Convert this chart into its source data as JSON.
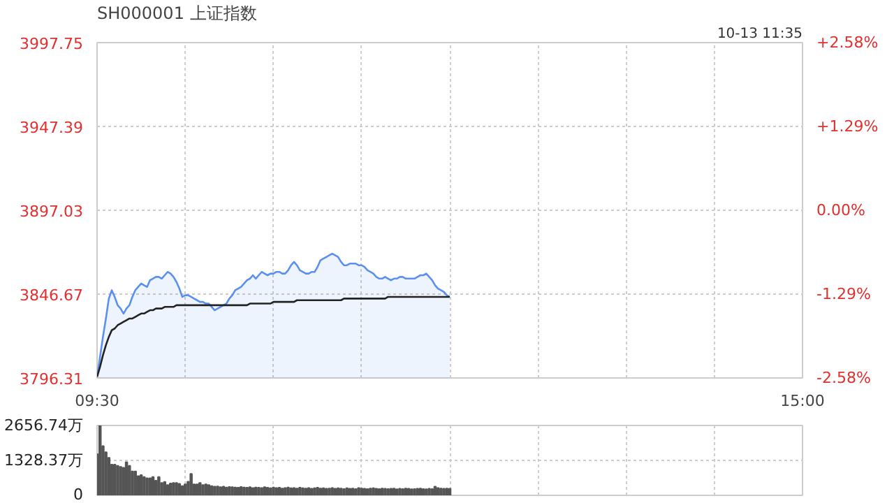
{
  "chart_data": [
    {
      "type": "line",
      "title": "SH000001 上证指数",
      "annotations": [
        "10-13 11:35"
      ],
      "grid": true,
      "line_style": "solid",
      "marker": "none",
      "categories": [
        "09:30",
        null,
        null,
        null,
        null,
        null,
        null,
        null,
        null,
        null,
        null,
        null,
        null,
        null,
        null,
        null,
        null,
        null,
        null,
        null,
        null,
        null,
        null,
        null,
        null,
        null,
        null,
        null,
        null,
        null,
        null,
        null,
        null,
        null,
        null,
        null,
        null,
        null,
        null,
        null,
        null,
        null,
        null,
        null,
        null,
        null,
        null,
        null,
        null,
        null,
        null,
        null,
        null,
        null,
        null,
        null,
        null,
        null,
        null,
        null,
        null,
        null,
        null,
        null,
        null,
        null,
        null,
        null,
        null,
        null,
        null,
        null,
        null,
        null,
        null,
        null,
        null,
        null,
        null,
        null,
        null,
        null,
        null,
        null,
        null,
        null,
        null,
        null,
        null,
        null,
        null,
        null,
        null,
        null,
        null,
        null,
        null,
        null,
        null,
        null,
        null,
        null,
        null,
        null,
        null,
        null,
        null,
        null,
        null,
        null,
        null,
        null,
        null,
        null,
        null,
        null,
        null,
        null,
        null,
        null,
        null,
        null,
        null,
        null,
        null,
        null,
        null,
        null,
        null,
        null,
        null,
        null,
        null,
        null,
        null,
        null,
        null,
        null,
        null,
        null,
        null,
        null,
        null,
        null,
        null,
        null,
        null,
        null,
        null,
        null,
        null,
        null,
        null,
        null,
        null,
        null,
        null,
        null,
        null,
        null,
        null,
        null,
        null,
        null,
        null,
        null,
        null,
        null,
        null,
        null,
        null,
        null,
        null,
        null,
        null,
        null,
        null,
        null,
        null,
        null,
        null,
        null,
        null,
        null,
        null,
        null,
        null,
        null,
        null,
        null,
        null,
        null,
        null,
        null,
        null,
        null,
        null,
        null,
        null,
        null,
        null,
        null,
        null,
        null,
        null,
        null,
        null,
        null,
        null,
        null,
        null,
        null,
        null,
        null,
        null,
        null,
        null,
        null,
        null,
        null,
        null,
        null,
        null,
        null,
        null,
        null,
        null,
        null,
        null,
        null,
        null,
        null,
        null,
        null,
        null,
        null,
        null,
        null,
        null,
        null,
        "15:00"
      ],
      "ylim": [
        3796.31,
        3997.75
      ],
      "yticks": [
        3796.31,
        3846.67,
        3897.03,
        3947.39,
        3997.75
      ],
      "y2lim": [
        -2.58,
        2.58
      ],
      "y2ticks": [
        {
          "value": -2.58,
          "label": "-2.58%"
        },
        {
          "value": -1.29,
          "label": "-1.29%"
        },
        {
          "value": 0,
          "label": "0.00%"
        },
        {
          "value": 1.29,
          "label": "+1.29%"
        },
        {
          "value": 2.58,
          "label": "+2.58%"
        }
      ],
      "series": [
        {
          "type": "area",
          "color": "#5b8ff0",
          "values": [
            3797,
            3809,
            3821,
            3832,
            3844,
            3849,
            3845,
            3840,
            3838,
            3835,
            3838,
            3840,
            3845,
            3849,
            3851,
            3853,
            3852,
            3851,
            3855,
            3856,
            3857,
            3857,
            3856,
            3858,
            3860,
            3859,
            3857,
            3854,
            3850,
            3845,
            3846,
            3846,
            3845,
            3844,
            3843,
            3842,
            3842,
            3841,
            3841,
            3839,
            3837,
            3838,
            3839,
            3840,
            3841,
            3844,
            3846,
            3849,
            3850,
            3851,
            3853,
            3855,
            3856,
            3858,
            3856,
            3858,
            3860,
            3859,
            3858,
            3859,
            3859,
            3860,
            3860,
            3859,
            3859,
            3861,
            3864,
            3866,
            3864,
            3861,
            3860,
            3859,
            3859,
            3860,
            3860,
            3863,
            3867,
            3868,
            3869,
            3870,
            3871,
            3870,
            3869,
            3866,
            3864,
            3864,
            3865,
            3865,
            3865,
            3864,
            3864,
            3863,
            3861,
            3860,
            3859,
            3857,
            3856,
            3856,
            3857,
            3856,
            3855,
            3856,
            3856,
            3857,
            3857,
            3856,
            3856,
            3856,
            3856,
            3857,
            3858,
            3858,
            3859,
            3857,
            3855,
            3852,
            3850,
            3849,
            3848,
            3846,
            3845,
            null,
            null,
            null,
            null,
            null,
            null,
            null,
            null,
            null,
            null,
            null,
            null,
            null,
            null,
            null,
            null,
            null,
            null,
            null,
            null,
            null,
            null,
            null,
            null,
            null,
            null,
            null,
            null,
            null,
            null,
            null,
            null,
            null,
            null,
            null,
            null,
            null,
            null,
            null,
            null,
            null,
            null,
            null,
            null,
            null,
            null,
            null,
            null,
            null,
            null,
            null,
            null,
            null,
            null,
            null,
            null,
            null,
            null,
            null,
            null,
            null,
            null,
            null,
            null,
            null,
            null,
            null,
            null,
            null,
            null,
            null,
            null,
            null,
            null,
            null,
            null,
            null,
            null,
            null,
            null,
            null,
            null,
            null,
            null,
            null,
            null,
            null,
            null,
            null,
            null,
            null,
            null,
            null,
            null,
            null,
            null,
            null,
            null,
            null,
            null,
            null,
            null,
            null,
            null,
            null,
            null,
            null,
            null,
            null,
            null,
            null,
            null,
            null,
            null,
            null,
            null,
            null,
            null,
            null,
            null
          ]
        },
        {
          "type": "line",
          "color": "#222222",
          "values": [
            3797,
            3803,
            3810,
            3816,
            3821,
            3825,
            3826,
            3828,
            3829,
            3830,
            3831,
            3832,
            3832,
            3833,
            3834,
            3835,
            3835,
            3836,
            3837,
            3837,
            3838,
            3838,
            3838,
            3839,
            3839,
            3839,
            3839,
            3840,
            3840,
            3840,
            3840,
            3840,
            3840,
            3840,
            3840,
            3840,
            3840,
            3840,
            3840,
            3840,
            3840,
            3840,
            3840,
            3840,
            3840,
            3840,
            3840,
            3840,
            3840,
            3840,
            3840,
            3840,
            3841,
            3841,
            3841,
            3841,
            3841,
            3841,
            3841,
            3841,
            3842,
            3842,
            3842,
            3842,
            3842,
            3842,
            3842,
            3842,
            3843,
            3843,
            3843,
            3843,
            3843,
            3843,
            3843,
            3843,
            3843,
            3843,
            3843,
            3843,
            3843,
            3843,
            3843,
            3843,
            3844,
            3844,
            3844,
            3844,
            3844,
            3844,
            3844,
            3844,
            3844,
            3844,
            3844,
            3844,
            3844,
            3844,
            3844,
            3845,
            3845,
            3845,
            3845,
            3845,
            3845,
            3845,
            3845,
            3845,
            3845,
            3845,
            3845,
            3845,
            3845,
            3845,
            3845,
            3845,
            3845,
            3845,
            3845,
            3845,
            3845,
            null,
            null,
            null,
            null,
            null,
            null,
            null,
            null,
            null,
            null,
            null,
            null,
            null,
            null,
            null,
            null,
            null,
            null,
            null,
            null,
            null,
            null,
            null,
            null,
            null,
            null,
            null,
            null,
            null,
            null,
            null,
            null,
            null,
            null,
            null,
            null,
            null,
            null,
            null,
            null,
            null,
            null,
            null,
            null,
            null,
            null,
            null,
            null,
            null,
            null,
            null,
            null,
            null,
            null,
            null,
            null,
            null,
            null,
            null,
            null,
            null,
            null,
            null,
            null,
            null,
            null,
            null,
            null,
            null,
            null,
            null,
            null,
            null,
            null,
            null,
            null,
            null,
            null,
            null,
            null,
            null,
            null,
            null,
            null,
            null,
            null,
            null,
            null,
            null,
            null,
            null,
            null,
            null,
            null,
            null,
            null,
            null,
            null,
            null,
            null,
            null,
            null,
            null,
            null,
            null,
            null,
            null,
            null,
            null,
            null,
            null,
            null,
            null,
            null,
            null,
            null,
            null,
            null,
            null,
            null
          ]
        }
      ]
    },
    {
      "type": "bar",
      "grid": true,
      "tick_labels": "y",
      "color": "#555555",
      "categories": [
        null,
        null,
        null,
        null,
        null,
        null,
        null,
        null,
        null,
        null,
        null,
        null,
        null,
        null,
        null,
        null,
        null,
        null,
        null,
        null,
        null,
        null,
        null,
        null,
        null,
        null,
        null,
        null,
        null,
        null,
        null,
        null,
        null,
        null,
        null,
        null,
        null,
        null,
        null,
        null,
        null,
        null,
        null,
        null,
        null,
        null,
        null,
        null,
        null,
        null,
        null,
        null,
        null,
        null,
        null,
        null,
        null,
        null,
        null,
        null,
        null,
        null,
        null,
        null,
        null,
        null,
        null,
        null,
        null,
        null,
        null,
        null,
        null,
        null,
        null,
        null,
        null,
        null,
        null,
        null,
        null,
        null,
        null,
        null,
        null,
        null,
        null,
        null,
        null,
        null,
        null,
        null,
        null,
        null,
        null,
        null,
        null,
        null,
        null,
        null,
        null,
        null,
        null,
        null,
        null,
        null,
        null,
        null,
        null,
        null,
        null,
        null,
        null,
        null,
        null,
        null,
        null,
        null,
        null,
        null,
        null,
        null,
        null,
        null,
        null,
        null,
        null,
        null,
        null,
        null,
        null,
        null,
        null,
        null,
        null,
        null,
        null,
        null,
        null,
        null,
        null,
        null,
        null,
        null,
        null,
        null,
        null,
        null,
        null,
        null,
        null,
        null,
        null,
        null,
        null,
        null,
        null,
        null,
        null,
        null,
        null,
        null,
        null,
        null,
        null,
        null,
        null,
        null,
        null,
        null,
        null,
        null,
        null,
        null,
        null,
        null,
        null,
        null,
        null,
        null,
        null,
        null,
        null,
        null,
        null,
        null,
        null,
        null,
        null,
        null,
        null,
        null,
        null,
        null,
        null,
        null,
        null,
        null,
        null,
        null,
        null,
        null,
        null,
        null,
        null,
        null,
        null,
        null,
        null,
        null,
        null,
        null,
        null,
        null,
        null,
        null,
        null,
        null,
        null,
        null,
        null,
        null,
        null,
        null,
        null,
        null,
        null,
        null,
        null,
        null,
        null,
        null,
        null,
        null,
        null,
        null,
        null,
        null,
        null,
        null,
        null
      ],
      "ylim": [
        0,
        2656.74
      ],
      "yticks": [
        0,
        {
          "value": 1328.37,
          "label": "1328.37万"
        },
        {
          "value": 2656.74,
          "label": "2656.74万"
        }
      ],
      "values": [
        1570,
        2656.74,
        1870,
        1640,
        1430,
        1170,
        1170,
        1120,
        1080,
        1050,
        1260,
        1120,
        910,
        910,
        730,
        770,
        700,
        650,
        650,
        700,
        560,
        700,
        470,
        510,
        390,
        450,
        470,
        470,
        440,
        350,
        420,
        520,
        820,
        420,
        420,
        470,
        390,
        420,
        390,
        350,
        330,
        340,
        310,
        330,
        300,
        320,
        310,
        300,
        290,
        320,
        300,
        290,
        310,
        280,
        300,
        290,
        280,
        310,
        290,
        270,
        300,
        280,
        290,
        260,
        280,
        300,
        270,
        280,
        260,
        290,
        270,
        260,
        280,
        250,
        270,
        290,
        260,
        270,
        250,
        260,
        280,
        250,
        270,
        260,
        240,
        270,
        250,
        260,
        240,
        280,
        260,
        250,
        240,
        260,
        270,
        250,
        240,
        260,
        250,
        240,
        250,
        260,
        230,
        250,
        240,
        260,
        250,
        230,
        240,
        250,
        260,
        240,
        230,
        250,
        240,
        330,
        280,
        260,
        250,
        260,
        250,
        null,
        null,
        null,
        null,
        null,
        null,
        null,
        null,
        null,
        null,
        null,
        null,
        null,
        null,
        null,
        null,
        null,
        null,
        null,
        null,
        null,
        null,
        null,
        null,
        null,
        null,
        null,
        null,
        null,
        null,
        null,
        null,
        null,
        null,
        null,
        null,
        null,
        null,
        null,
        null,
        null,
        null,
        null,
        null,
        null,
        null,
        null,
        null,
        null,
        null,
        null,
        null,
        null,
        null,
        null,
        null,
        null,
        null,
        null,
        null,
        null,
        null,
        null,
        null,
        null,
        null,
        null,
        null,
        null,
        null,
        null,
        null,
        null,
        null,
        null,
        null,
        null,
        null,
        null,
        null,
        null,
        null,
        null,
        null,
        null,
        null,
        null,
        null,
        null,
        null,
        null,
        null,
        null,
        null,
        null,
        null,
        null,
        null,
        null,
        null,
        null,
        null,
        null,
        null,
        null,
        null,
        null,
        null,
        null,
        null,
        null,
        null,
        null,
        null,
        null,
        null,
        null,
        null,
        null,
        null
      ]
    }
  ]
}
